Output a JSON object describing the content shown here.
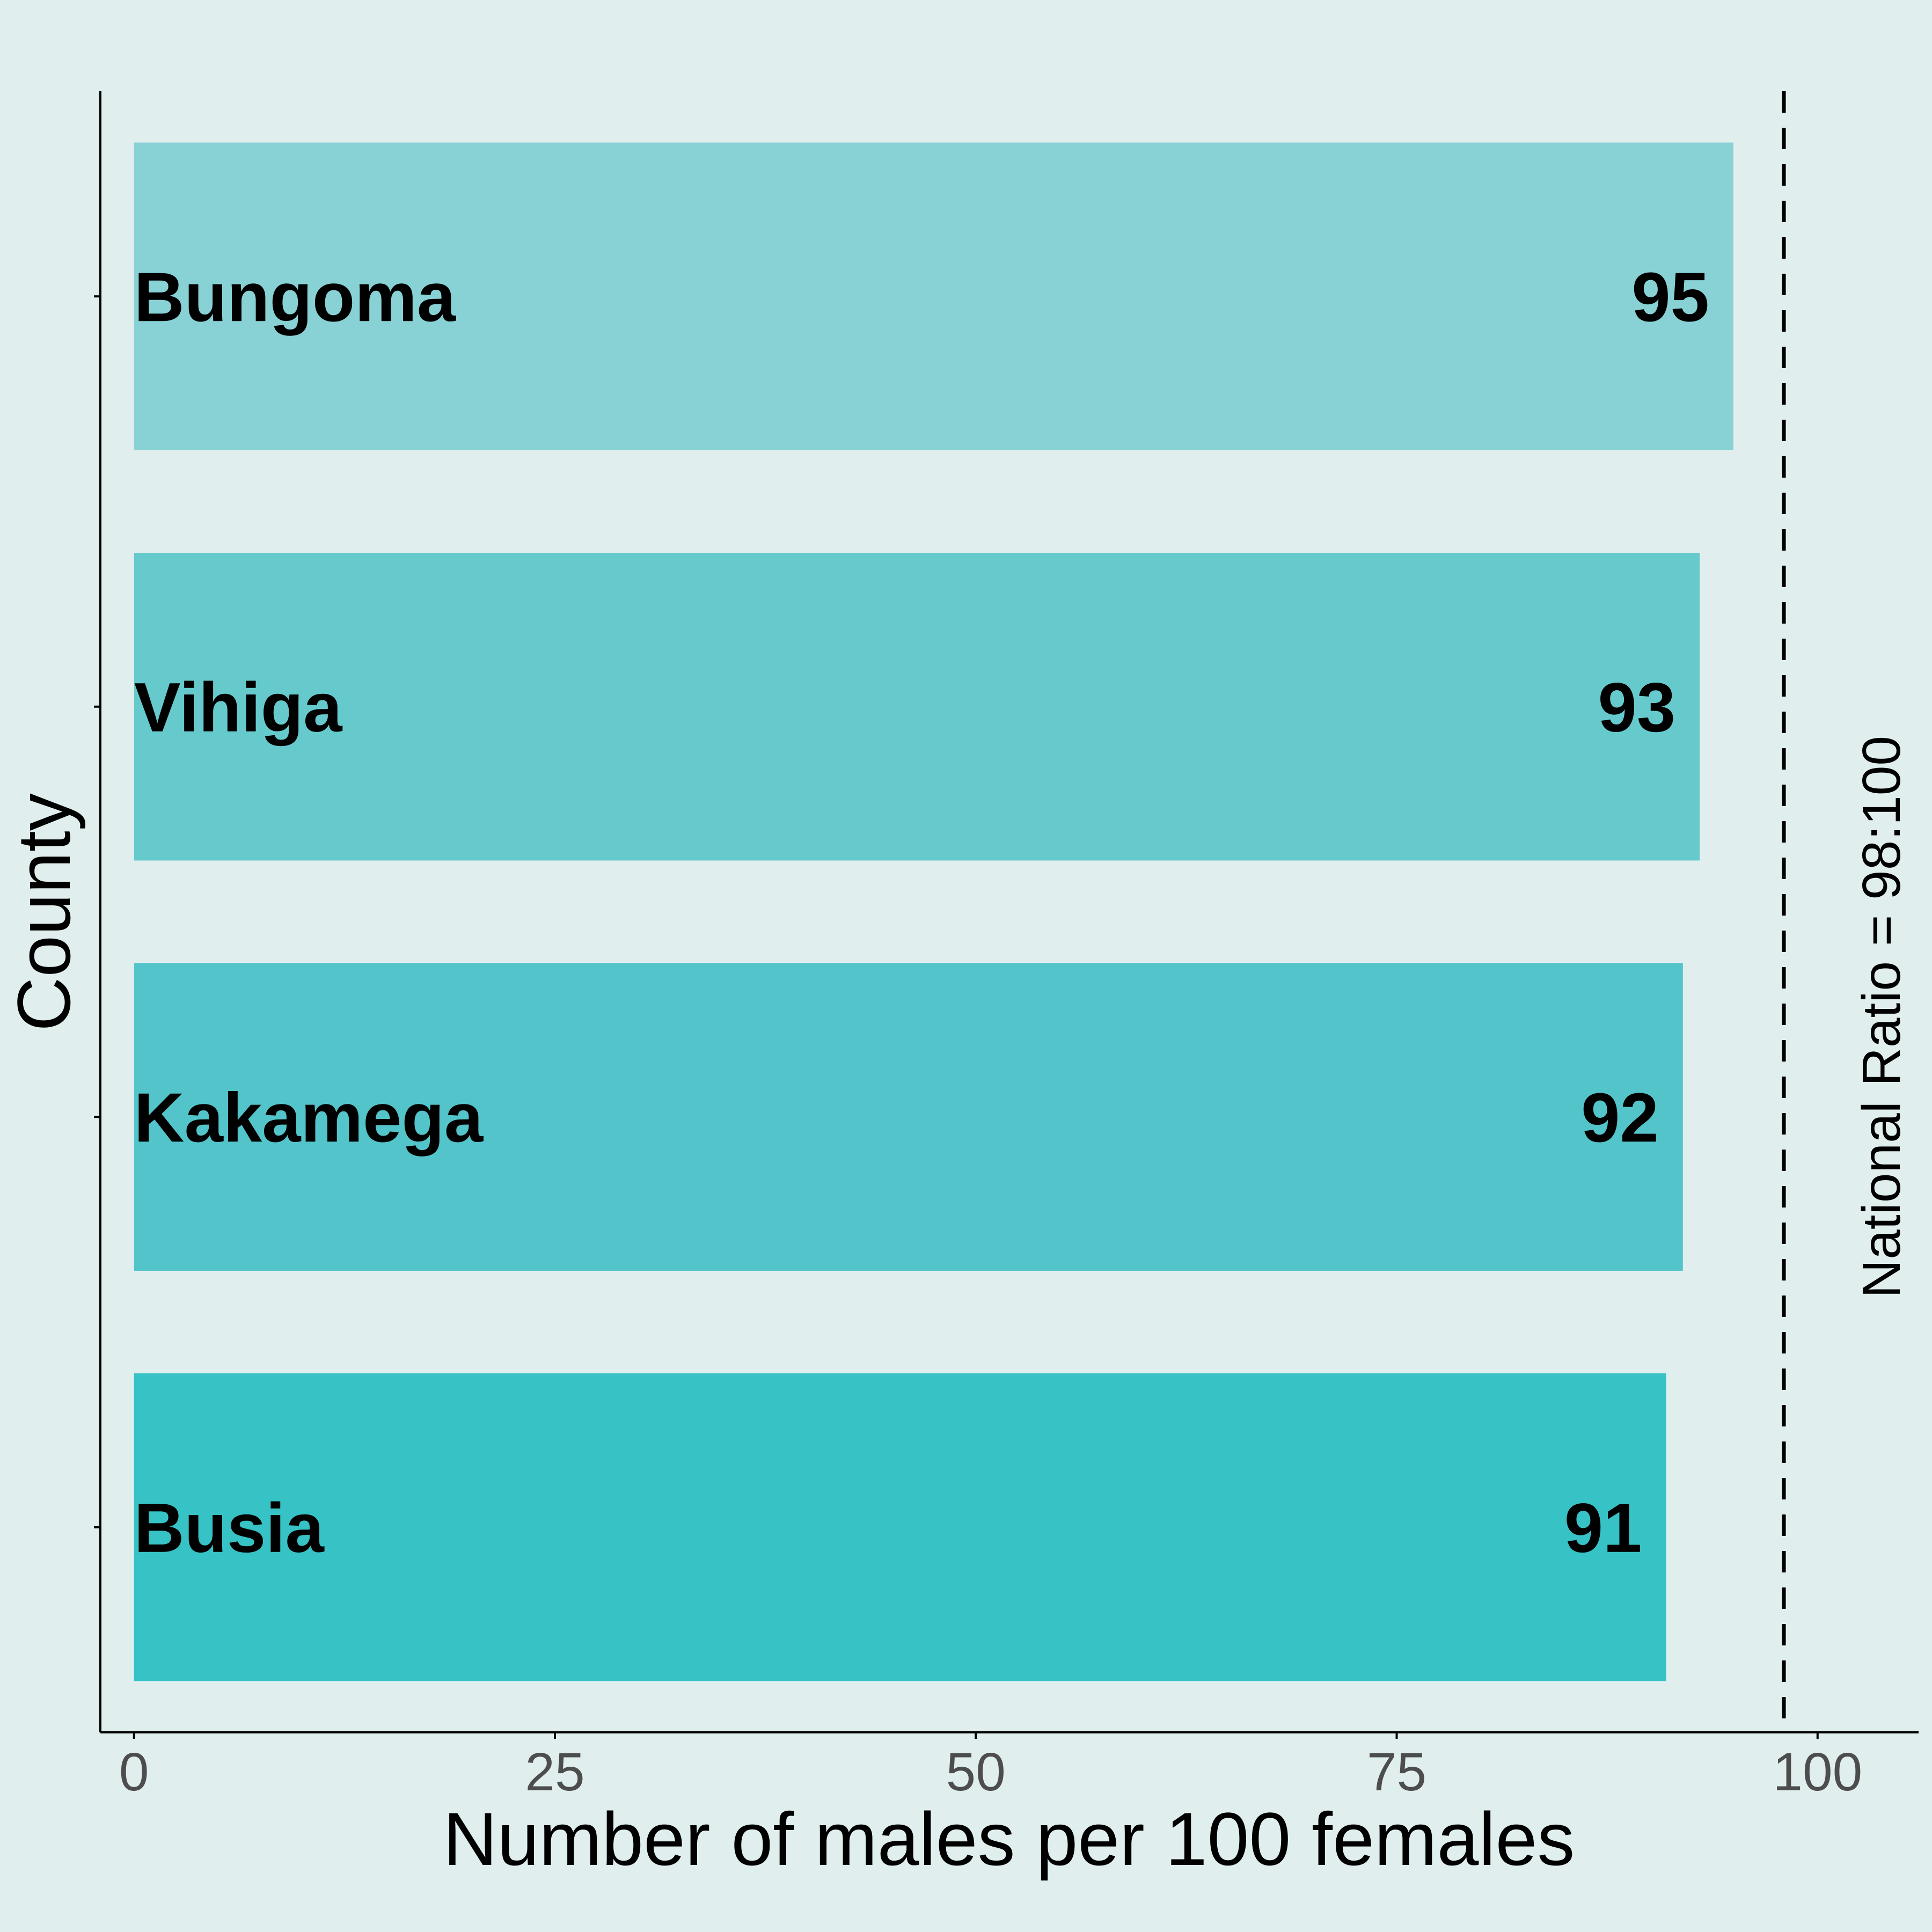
{
  "chart_data": {
    "type": "bar",
    "orientation": "horizontal",
    "categories": [
      "Bungoma",
      "Vihiga",
      "Kakamega",
      "Busia"
    ],
    "values": [
      95,
      93,
      92,
      91
    ],
    "value_labels": [
      "95",
      "93",
      "92",
      "91"
    ],
    "bar_colors": [
      "#88d2d6",
      "#66cacd",
      "#52c4ca",
      "#37c2c5"
    ],
    "xlabel": "Number of males per 100 females",
    "ylabel": "County",
    "xlim": [
      -2,
      106
    ],
    "xticks": [
      0,
      25,
      50,
      75,
      100
    ],
    "xtick_labels": [
      "0",
      "25",
      "50",
      "75",
      "100"
    ],
    "reference_line": {
      "x": 98,
      "style": "dashed",
      "label": "National Ratio = 98:100"
    },
    "grid": false,
    "legend": "none",
    "background": "#e0efee"
  }
}
